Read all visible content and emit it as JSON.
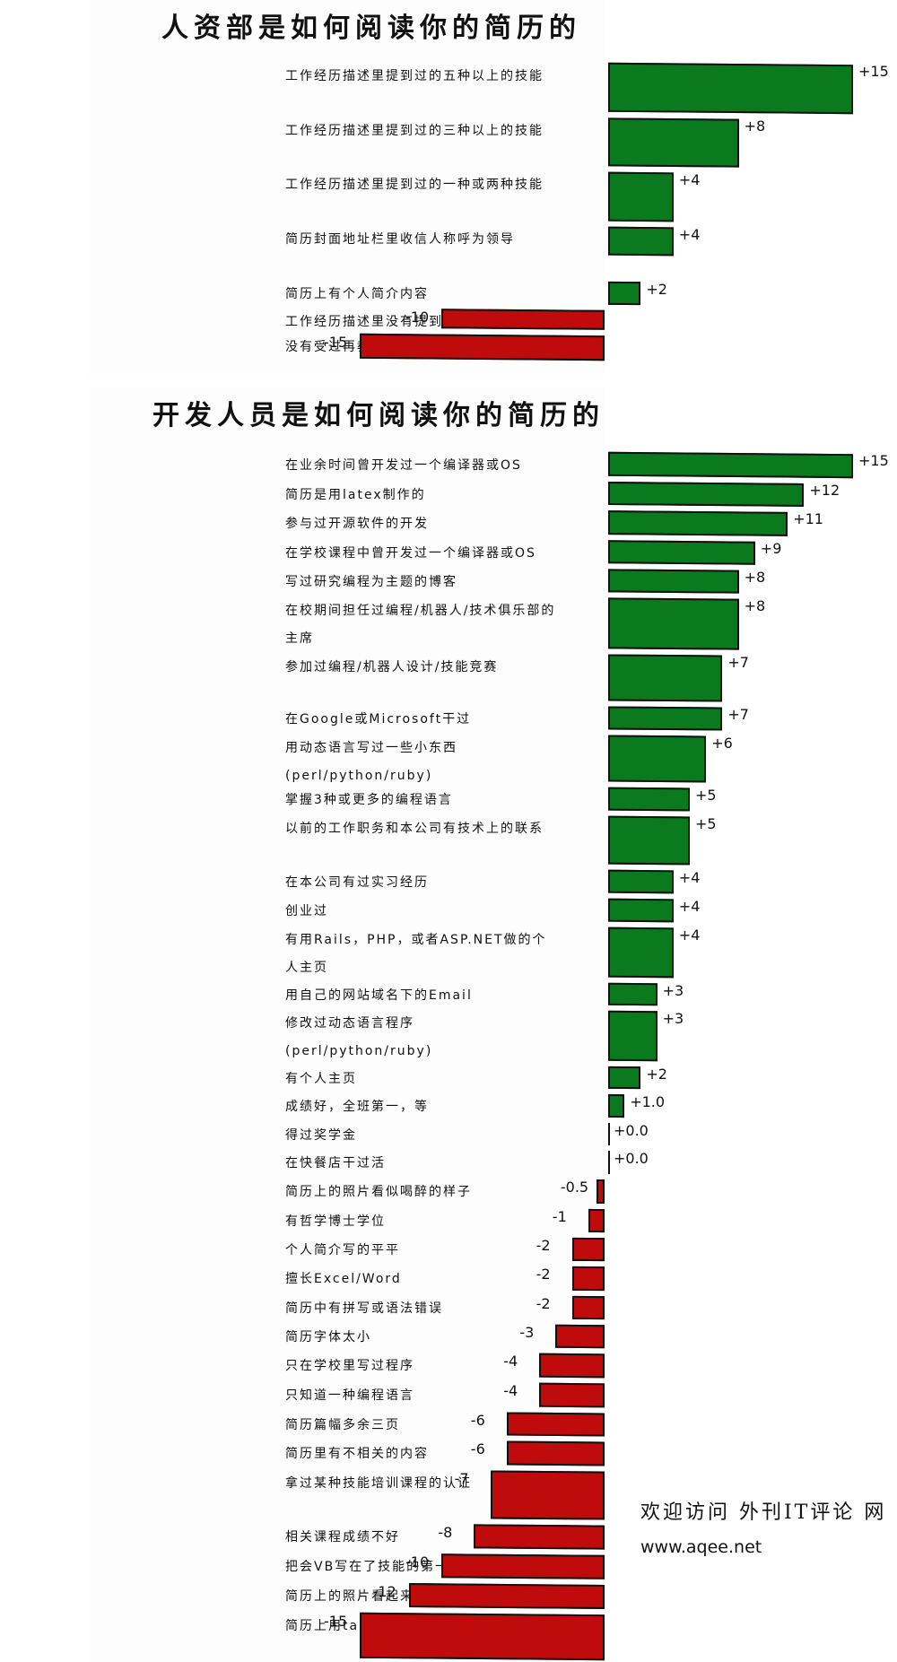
{
  "chart_data": [
    {
      "type": "bar",
      "title": "人资部是如何阅读你的简历的",
      "categories": [
        "工作经历描述里提到过的五种以上的技能",
        "工作经历描述里提到过的三种以上的技能",
        "工作经历描述里提到过的一种或两种技能",
        "简历封面地址栏里收信人称呼为领导",
        "简历上有个人简介内容",
        "工作经历描述里没有提到任何技能信息",
        "没有受过再教育培训"
      ],
      "values": [
        15,
        8,
        4,
        4,
        2,
        -10,
        -15
      ],
      "value_labels": [
        "+15",
        "+8",
        "+4",
        "+4",
        "+2",
        "-10",
        "-15"
      ],
      "xlim": [
        -15,
        15
      ],
      "colors": {
        "positive": "#0b7a1e",
        "negative": "#bf0b0b"
      }
    },
    {
      "type": "bar",
      "title": "开发人员是如何阅读你的简历的",
      "categories": [
        "在业余时间曾开发过一个编译器或OS",
        "简历是用latex制作的",
        "参与过开源软件的开发",
        "在学校课程中曾开发过一个编译器或OS",
        "写过研究编程为主题的博客",
        "在校期间担任过编程/机器人/技术俱乐部的主席",
        "参加过编程/机器人设计/技能竞赛",
        "在Google或Microsoft干过",
        "用动态语言写过一些小东西(perl/python/ruby)",
        "掌握3种或更多的编程语言",
        "以前的工作职务和本公司有技术上的联系",
        "在本公司有过实习经历",
        "创业过",
        "有用Rails，PHP，或者ASP.NET做的个人主页",
        "用自己的网站域名下的Email",
        "修改过动态语言程序(perl/python/ruby)",
        "有个人主页",
        "成绩好，全班第一，等",
        "得过奖学金",
        "在快餐店干过活",
        "简历上的照片看似喝醉的样子",
        "有哲学博士学位",
        "个人简介写的平平",
        "擅长Excel/Word",
        "简历中有拼写或语法错误",
        "简历字体太小",
        "只在学校里写过程序",
        "只知道一种编程语言",
        "简历篇幅多余三页",
        "简历里有不相关的内容",
        "拿过某种技能培训课程的认证",
        "相关课程成绩不好",
        "把会VB写在了技能的第一位",
        "简历上的照片看起来秃顶",
        "简历上用tab和空格来缩进排版"
      ],
      "values": [
        15,
        12,
        11,
        9,
        8,
        8,
        7,
        7,
        6,
        5,
        5,
        4,
        4,
        4,
        3,
        3,
        2,
        1.0,
        0.0,
        0.0,
        -0.5,
        -1,
        -2,
        -2,
        -2,
        -3,
        -4,
        -4,
        -6,
        -6,
        -7,
        -8,
        -10,
        -12,
        -15
      ],
      "value_labels": [
        "+15",
        "+12",
        "+11",
        "+9",
        "+8",
        "+8",
        "+7",
        "+7",
        "+6",
        "+5",
        "+5",
        "+4",
        "+4",
        "+4",
        "+3",
        "+3",
        "+2",
        "+1.0",
        "+0.0",
        "+0.0",
        "-0.5",
        "-1",
        "-2",
        "-2",
        "-2",
        "-3",
        "-4",
        "-4",
        "-6",
        "-6",
        "-7",
        "-8",
        "-10",
        "-12",
        "-15"
      ],
      "xlim": [
        -15,
        15
      ],
      "colors": {
        "positive": "#0b7a1e",
        "negative": "#bf0b0b"
      }
    }
  ],
  "footer": {
    "line1": "欢迎访问 外刊IT评论 网",
    "line2": "www.aqee.net"
  }
}
